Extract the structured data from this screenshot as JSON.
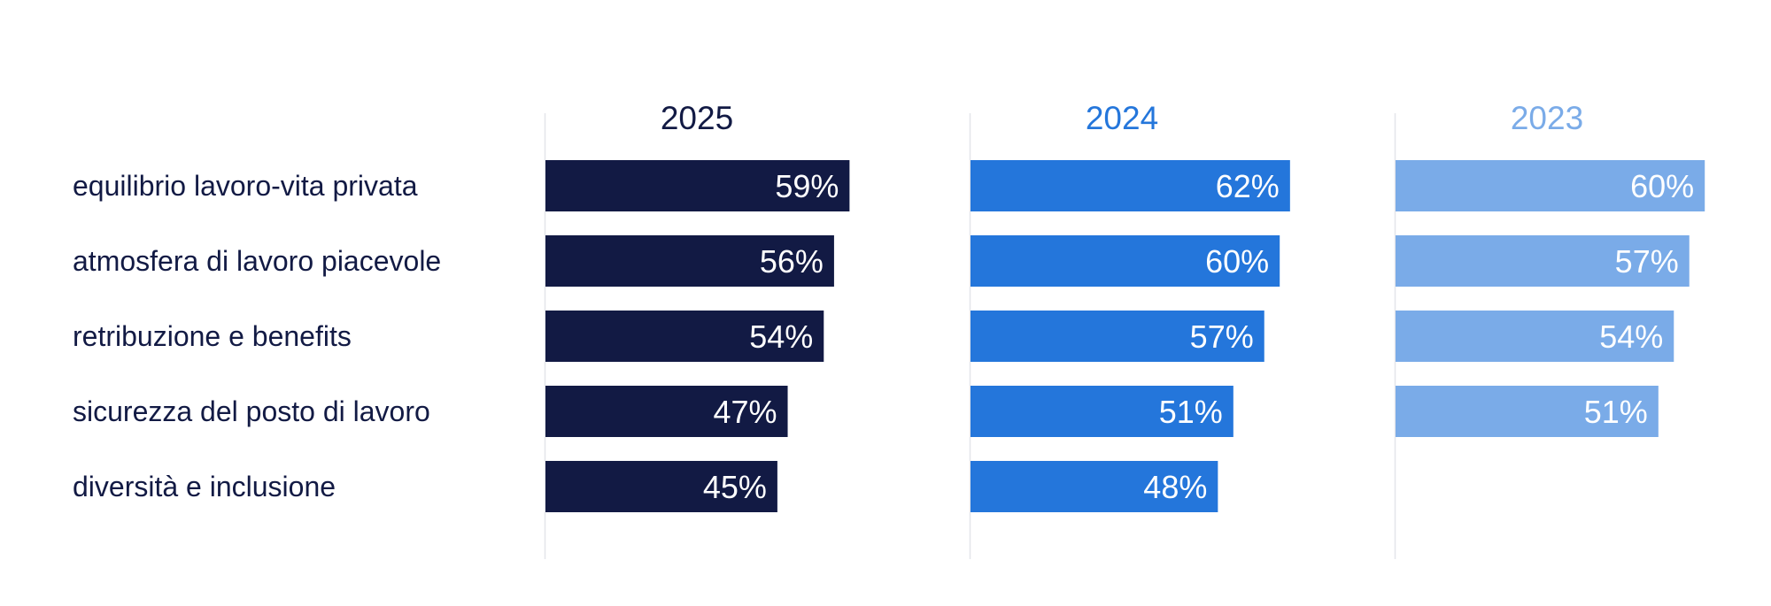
{
  "chart_data": {
    "type": "bar",
    "orientation": "horizontal",
    "categories": [
      "equilibrio lavoro-vita privata",
      "atmosfera di lavoro piacevole",
      "retribuzione e benefits",
      "sicurezza del posto di lavoro",
      "diversità e inclusione"
    ],
    "series": [
      {
        "name": "2025",
        "color": "#121a44",
        "values": [
          59,
          56,
          54,
          47,
          45
        ]
      },
      {
        "name": "2024",
        "color": "#2476db",
        "values": [
          62,
          60,
          57,
          51,
          48
        ]
      },
      {
        "name": "2023",
        "color": "#7aabe8",
        "values": [
          60,
          57,
          54,
          51,
          null
        ]
      }
    ],
    "value_suffix": "%",
    "title": "",
    "xlabel": "",
    "ylabel": "",
    "grid": false,
    "legend": "none"
  }
}
